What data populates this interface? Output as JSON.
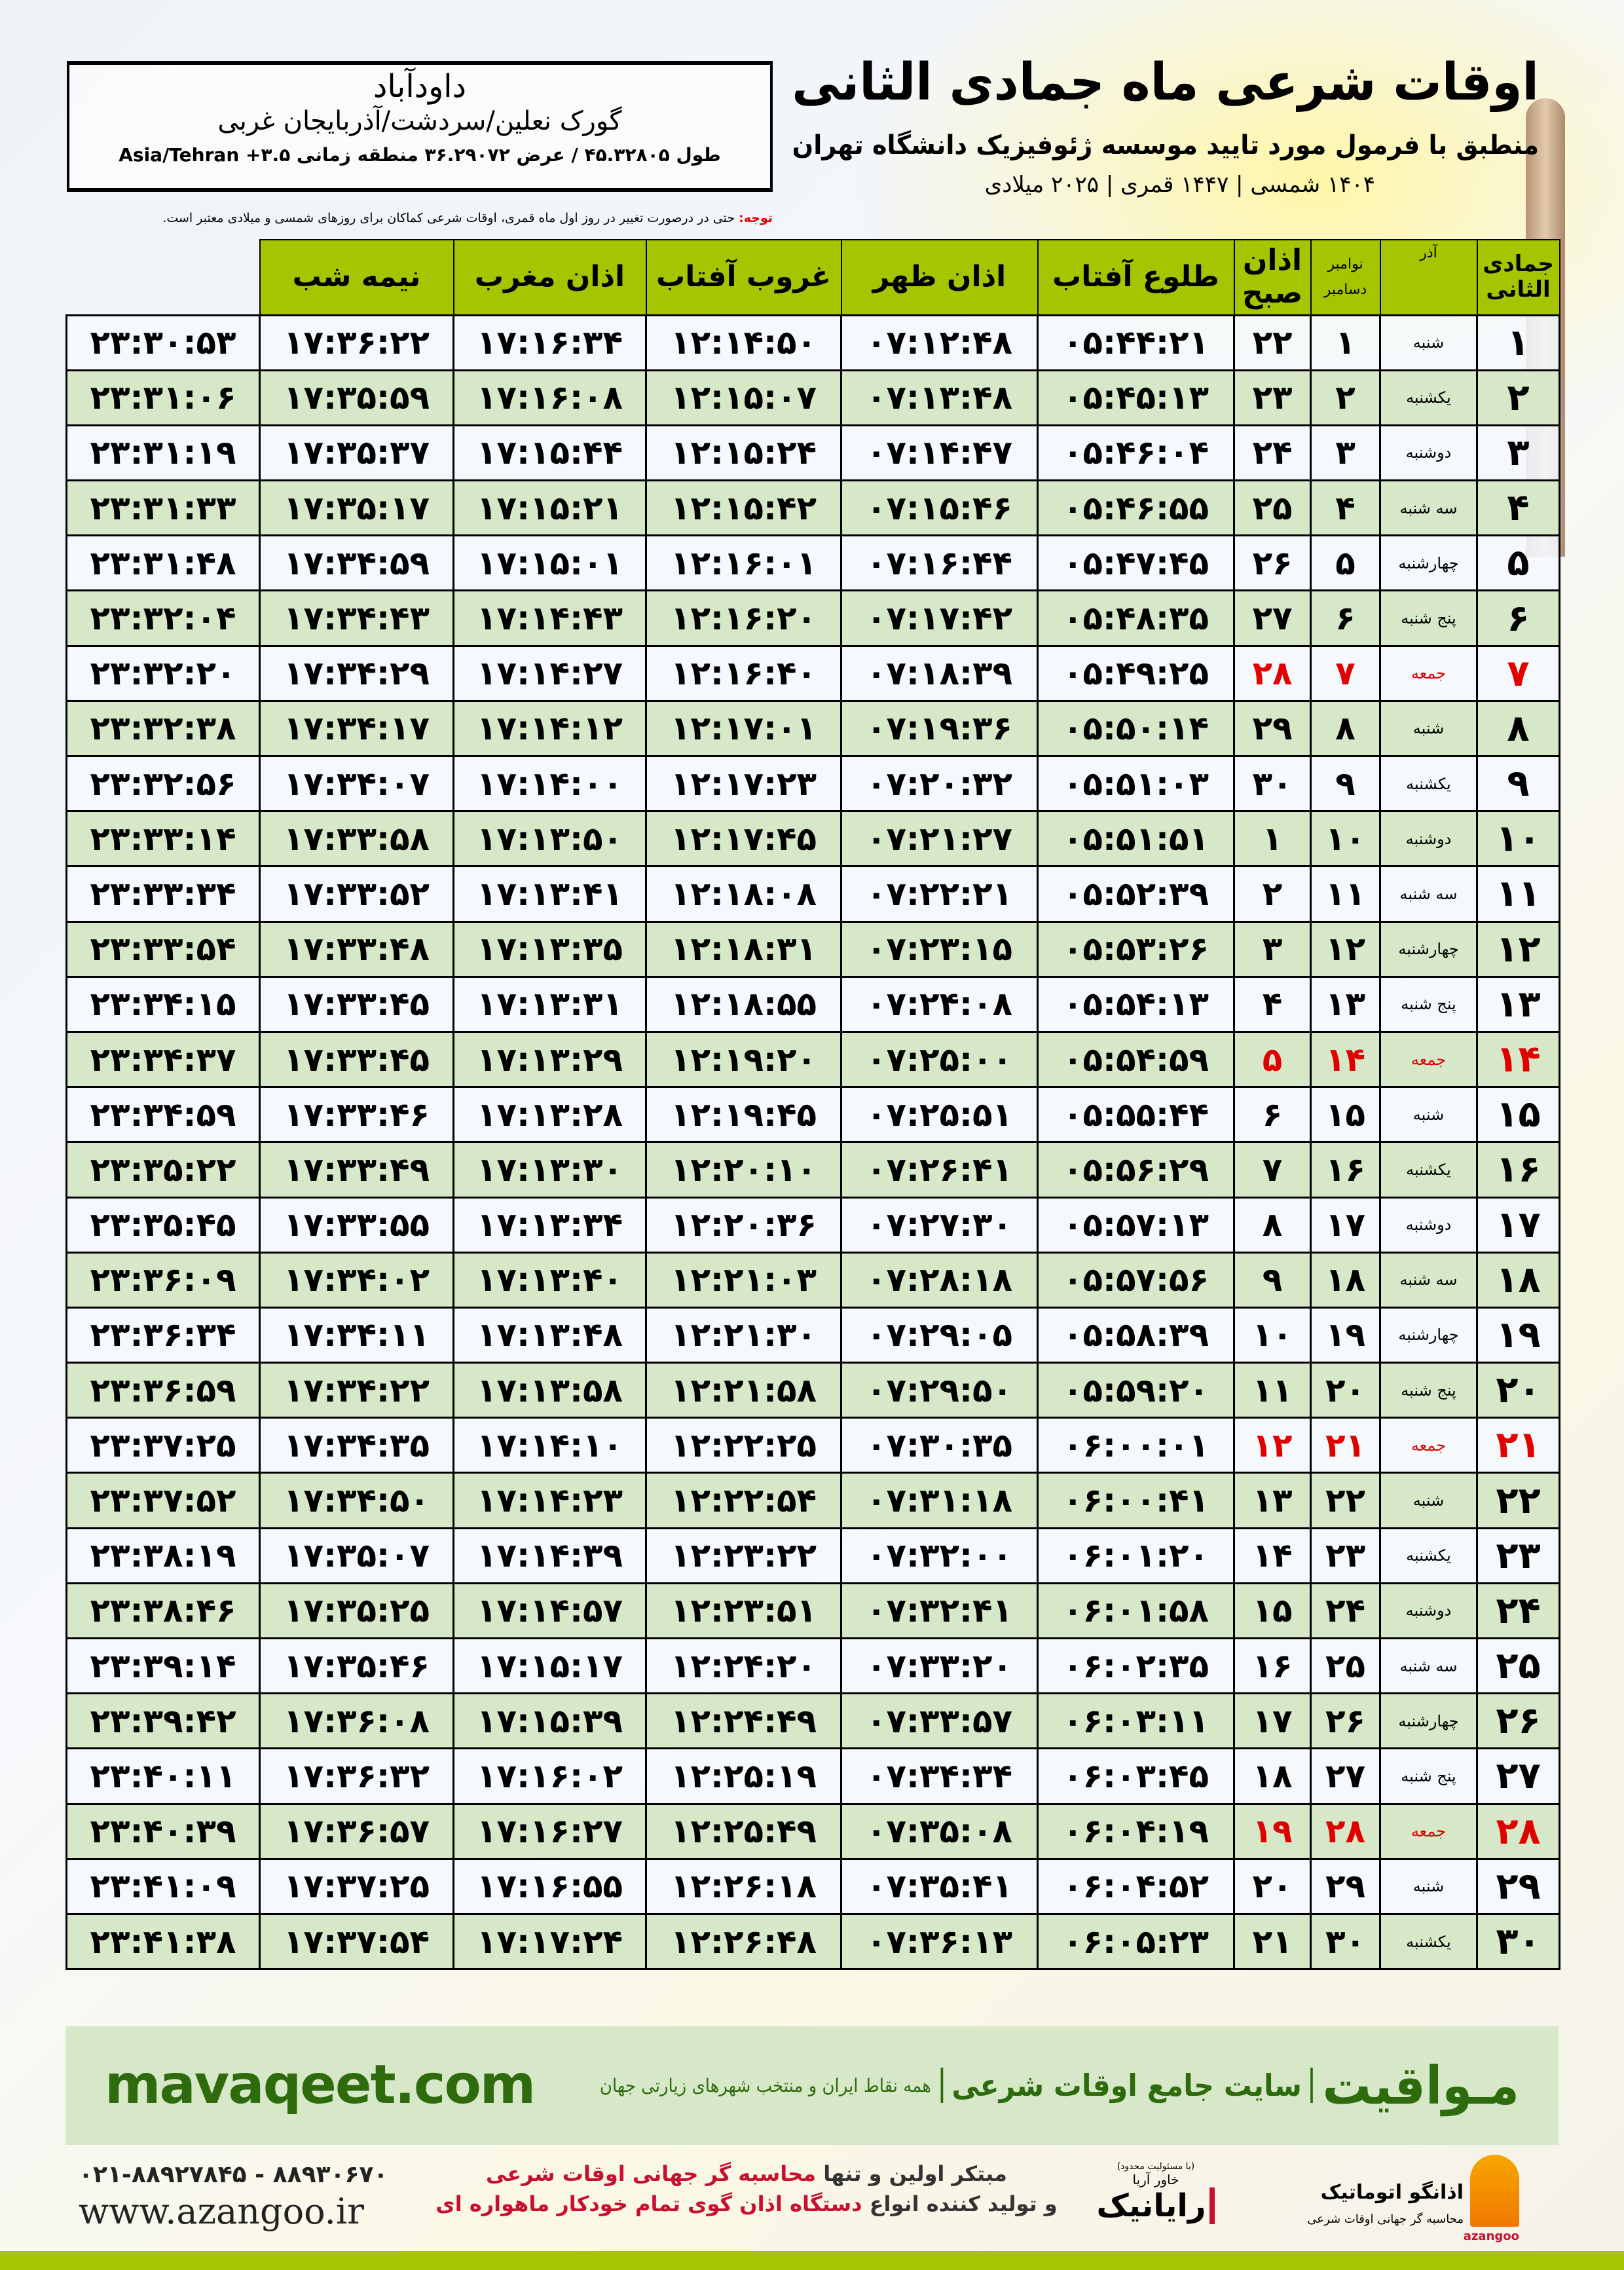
{
  "info": {
    "city": "داودآباد",
    "region": "گورک نعلین/سردشت/آذربایجان غربی",
    "coords": "طول ۴۵.۳۲۸۰۵ / عرض ۳۶.۲۹۰۷۲ منطقه زمانی ۳.۵+ Asia/Tehran"
  },
  "title": {
    "main": "اوقات شرعی ماه جمادی الثانی",
    "sub": "منطبق با فرمول مورد تایید موسسه ژئوفیزیک دانشگاه تهران",
    "years": "۱۴۰۴ شمسی | ۱۴۴۷ قمری | ۲۰۲۵ میلادی"
  },
  "note": {
    "label": "توجه:",
    "text": " حتی در درصورت تغییر در روز اول ماه قمری، اوقات شرعی کماکان برای روزهای شمسی و میلادی معتبر است."
  },
  "colors": {
    "header": "#a6c400",
    "alt_row": "#d7e8c8",
    "friday": "#e00000",
    "brand": "#2e6b0d"
  },
  "table": {
    "headers": [
      "جمادی الثانی",
      "آذر",
      "نوامبر",
      "دسامبر",
      "اذان صبح",
      "طلوع آفتاب",
      "اذان ظهر",
      "غروب آفتاب",
      "اذان مغرب",
      "نیمه شب"
    ],
    "rows": [
      [
        "۱",
        "شنبه",
        "۱",
        "۲۲",
        "۰۵:۴۴:۲۱",
        "۰۷:۱۲:۴۸",
        "۱۲:۱۴:۵۰",
        "۱۷:۱۶:۳۴",
        "۱۷:۳۶:۲۲",
        "۲۳:۳۰:۵۳"
      ],
      [
        "۲",
        "یکشنبه",
        "۲",
        "۲۳",
        "۰۵:۴۵:۱۳",
        "۰۷:۱۳:۴۸",
        "۱۲:۱۵:۰۷",
        "۱۷:۱۶:۰۸",
        "۱۷:۳۵:۵۹",
        "۲۳:۳۱:۰۶"
      ],
      [
        "۳",
        "دوشنبه",
        "۳",
        "۲۴",
        "۰۵:۴۶:۰۴",
        "۰۷:۱۴:۴۷",
        "۱۲:۱۵:۲۴",
        "۱۷:۱۵:۴۴",
        "۱۷:۳۵:۳۷",
        "۲۳:۳۱:۱۹"
      ],
      [
        "۴",
        "سه شنبه",
        "۴",
        "۲۵",
        "۰۵:۴۶:۵۵",
        "۰۷:۱۵:۴۶",
        "۱۲:۱۵:۴۲",
        "۱۷:۱۵:۲۱",
        "۱۷:۳۵:۱۷",
        "۲۳:۳۱:۳۳"
      ],
      [
        "۵",
        "چهارشنبه",
        "۵",
        "۲۶",
        "۰۵:۴۷:۴۵",
        "۰۷:۱۶:۴۴",
        "۱۲:۱۶:۰۱",
        "۱۷:۱۵:۰۱",
        "۱۷:۳۴:۵۹",
        "۲۳:۳۱:۴۸"
      ],
      [
        "۶",
        "پنج شنبه",
        "۶",
        "۲۷",
        "۰۵:۴۸:۳۵",
        "۰۷:۱۷:۴۲",
        "۱۲:۱۶:۲۰",
        "۱۷:۱۴:۴۳",
        "۱۷:۳۴:۴۳",
        "۲۳:۳۲:۰۴"
      ],
      [
        "۷",
        "جمعه",
        "۷",
        "۲۸",
        "۰۵:۴۹:۲۵",
        "۰۷:۱۸:۳۹",
        "۱۲:۱۶:۴۰",
        "۱۷:۱۴:۲۷",
        "۱۷:۳۴:۲۹",
        "۲۳:۳۲:۲۰"
      ],
      [
        "۸",
        "شنبه",
        "۸",
        "۲۹",
        "۰۵:۵۰:۱۴",
        "۰۷:۱۹:۳۶",
        "۱۲:۱۷:۰۱",
        "۱۷:۱۴:۱۲",
        "۱۷:۳۴:۱۷",
        "۲۳:۳۲:۳۸"
      ],
      [
        "۹",
        "یکشنبه",
        "۹",
        "۳۰",
        "۰۵:۵۱:۰۳",
        "۰۷:۲۰:۳۲",
        "۱۲:۱۷:۲۳",
        "۱۷:۱۴:۰۰",
        "۱۷:۳۴:۰۷",
        "۲۳:۳۲:۵۶"
      ],
      [
        "۱۰",
        "دوشنبه",
        "۱۰",
        "۱",
        "۰۵:۵۱:۵۱",
        "۰۷:۲۱:۲۷",
        "۱۲:۱۷:۴۵",
        "۱۷:۱۳:۵۰",
        "۱۷:۳۳:۵۸",
        "۲۳:۳۳:۱۴"
      ],
      [
        "۱۱",
        "سه شنبه",
        "۱۱",
        "۲",
        "۰۵:۵۲:۳۹",
        "۰۷:۲۲:۲۱",
        "۱۲:۱۸:۰۸",
        "۱۷:۱۳:۴۱",
        "۱۷:۳۳:۵۲",
        "۲۳:۳۳:۳۴"
      ],
      [
        "۱۲",
        "چهارشنبه",
        "۱۲",
        "۳",
        "۰۵:۵۳:۲۶",
        "۰۷:۲۳:۱۵",
        "۱۲:۱۸:۳۱",
        "۱۷:۱۳:۳۵",
        "۱۷:۳۳:۴۸",
        "۲۳:۳۳:۵۴"
      ],
      [
        "۱۳",
        "پنج شنبه",
        "۱۳",
        "۴",
        "۰۵:۵۴:۱۳",
        "۰۷:۲۴:۰۸",
        "۱۲:۱۸:۵۵",
        "۱۷:۱۳:۳۱",
        "۱۷:۳۳:۴۵",
        "۲۳:۳۴:۱۵"
      ],
      [
        "۱۴",
        "جمعه",
        "۱۴",
        "۵",
        "۰۵:۵۴:۵۹",
        "۰۷:۲۵:۰۰",
        "۱۲:۱۹:۲۰",
        "۱۷:۱۳:۲۹",
        "۱۷:۳۳:۴۵",
        "۲۳:۳۴:۳۷"
      ],
      [
        "۱۵",
        "شنبه",
        "۱۵",
        "۶",
        "۰۵:۵۵:۴۴",
        "۰۷:۲۵:۵۱",
        "۱۲:۱۹:۴۵",
        "۱۷:۱۳:۲۸",
        "۱۷:۳۳:۴۶",
        "۲۳:۳۴:۵۹"
      ],
      [
        "۱۶",
        "یکشنبه",
        "۱۶",
        "۷",
        "۰۵:۵۶:۲۹",
        "۰۷:۲۶:۴۱",
        "۱۲:۲۰:۱۰",
        "۱۷:۱۳:۳۰",
        "۱۷:۳۳:۴۹",
        "۲۳:۳۵:۲۲"
      ],
      [
        "۱۷",
        "دوشنبه",
        "۱۷",
        "۸",
        "۰۵:۵۷:۱۳",
        "۰۷:۲۷:۳۰",
        "۱۲:۲۰:۳۶",
        "۱۷:۱۳:۳۴",
        "۱۷:۳۳:۵۵",
        "۲۳:۳۵:۴۵"
      ],
      [
        "۱۸",
        "سه شنبه",
        "۱۸",
        "۹",
        "۰۵:۵۷:۵۶",
        "۰۷:۲۸:۱۸",
        "۱۲:۲۱:۰۳",
        "۱۷:۱۳:۴۰",
        "۱۷:۳۴:۰۲",
        "۲۳:۳۶:۰۹"
      ],
      [
        "۱۹",
        "چهارشنبه",
        "۱۹",
        "۱۰",
        "۰۵:۵۸:۳۹",
        "۰۷:۲۹:۰۵",
        "۱۲:۲۱:۳۰",
        "۱۷:۱۳:۴۸",
        "۱۷:۳۴:۱۱",
        "۲۳:۳۶:۳۴"
      ],
      [
        "۲۰",
        "پنج شنبه",
        "۲۰",
        "۱۱",
        "۰۵:۵۹:۲۰",
        "۰۷:۲۹:۵۰",
        "۱۲:۲۱:۵۸",
        "۱۷:۱۳:۵۸",
        "۱۷:۳۴:۲۲",
        "۲۳:۳۶:۵۹"
      ],
      [
        "۲۱",
        "جمعه",
        "۲۱",
        "۱۲",
        "۰۶:۰۰:۰۱",
        "۰۷:۳۰:۳۵",
        "۱۲:۲۲:۲۵",
        "۱۷:۱۴:۱۰",
        "۱۷:۳۴:۳۵",
        "۲۳:۳۷:۲۵"
      ],
      [
        "۲۲",
        "شنبه",
        "۲۲",
        "۱۳",
        "۰۶:۰۰:۴۱",
        "۰۷:۳۱:۱۸",
        "۱۲:۲۲:۵۴",
        "۱۷:۱۴:۲۳",
        "۱۷:۳۴:۵۰",
        "۲۳:۳۷:۵۲"
      ],
      [
        "۲۳",
        "یکشنبه",
        "۲۳",
        "۱۴",
        "۰۶:۰۱:۲۰",
        "۰۷:۳۲:۰۰",
        "۱۲:۲۳:۲۲",
        "۱۷:۱۴:۳۹",
        "۱۷:۳۵:۰۷",
        "۲۳:۳۸:۱۹"
      ],
      [
        "۲۴",
        "دوشنبه",
        "۲۴",
        "۱۵",
        "۰۶:۰۱:۵۸",
        "۰۷:۳۲:۴۱",
        "۱۲:۲۳:۵۱",
        "۱۷:۱۴:۵۷",
        "۱۷:۳۵:۲۵",
        "۲۳:۳۸:۴۶"
      ],
      [
        "۲۵",
        "سه شنبه",
        "۲۵",
        "۱۶",
        "۰۶:۰۲:۳۵",
        "۰۷:۳۳:۲۰",
        "۱۲:۲۴:۲۰",
        "۱۷:۱۵:۱۷",
        "۱۷:۳۵:۴۶",
        "۲۳:۳۹:۱۴"
      ],
      [
        "۲۶",
        "چهارشنبه",
        "۲۶",
        "۱۷",
        "۰۶:۰۳:۱۱",
        "۰۷:۳۳:۵۷",
        "۱۲:۲۴:۴۹",
        "۱۷:۱۵:۳۹",
        "۱۷:۳۶:۰۸",
        "۲۳:۳۹:۴۲"
      ],
      [
        "۲۷",
        "پنج شنبه",
        "۲۷",
        "۱۸",
        "۰۶:۰۳:۴۵",
        "۰۷:۳۴:۳۴",
        "۱۲:۲۵:۱۹",
        "۱۷:۱۶:۰۲",
        "۱۷:۳۶:۳۲",
        "۲۳:۴۰:۱۱"
      ],
      [
        "۲۸",
        "جمعه",
        "۲۸",
        "۱۹",
        "۰۶:۰۴:۱۹",
        "۰۷:۳۵:۰۸",
        "۱۲:۲۵:۴۹",
        "۱۷:۱۶:۲۷",
        "۱۷:۳۶:۵۷",
        "۲۳:۴۰:۳۹"
      ],
      [
        "۲۹",
        "شنبه",
        "۲۹",
        "۲۰",
        "۰۶:۰۴:۵۲",
        "۰۷:۳۵:۴۱",
        "۱۲:۲۶:۱۸",
        "۱۷:۱۶:۵۵",
        "۱۷:۳۷:۲۵",
        "۲۳:۴۱:۰۹"
      ],
      [
        "۳۰",
        "یکشنبه",
        "۳۰",
        "۲۱",
        "۰۶:۰۵:۲۳",
        "۰۷:۳۶:۱۳",
        "۱۲:۲۶:۴۸",
        "۱۷:۱۷:۲۴",
        "۱۷:۳۷:۵۴",
        "۲۳:۴۱:۳۸"
      ]
    ]
  },
  "banner": {
    "brand": "مـواقیت",
    "tagline": "سایت جامع اوقات شرعی",
    "tagline2": "همه نقاط ایران و منتخب شهرهای زیارتی جهان",
    "site": "mavaqeet.com"
  },
  "footer": {
    "phone": "۰۲۱-۸۸۹۲۷۸۴۵ - ۸۸۹۳۰۶۷۰",
    "web": "www.azangoo.ir",
    "line1a": "مبتکر اولین و تنها ",
    "line1b": "محاسبه گر جهانی اوقات شرعی",
    "line2a": "و تولید کننده انواع ",
    "line2b": "دستگاه اذان گوی تمام خودکار ماهواره ای",
    "logo1_small": "(با مسئولیت محدود)",
    "logo1_name": "رایانیک",
    "logo1_sub": "خاور آریا",
    "logo2_name": "اذانگو اتوماتیک",
    "logo2_sub": "محاسبه گر جهانی اوقات شرعی",
    "logo2_en": "azangoo"
  }
}
